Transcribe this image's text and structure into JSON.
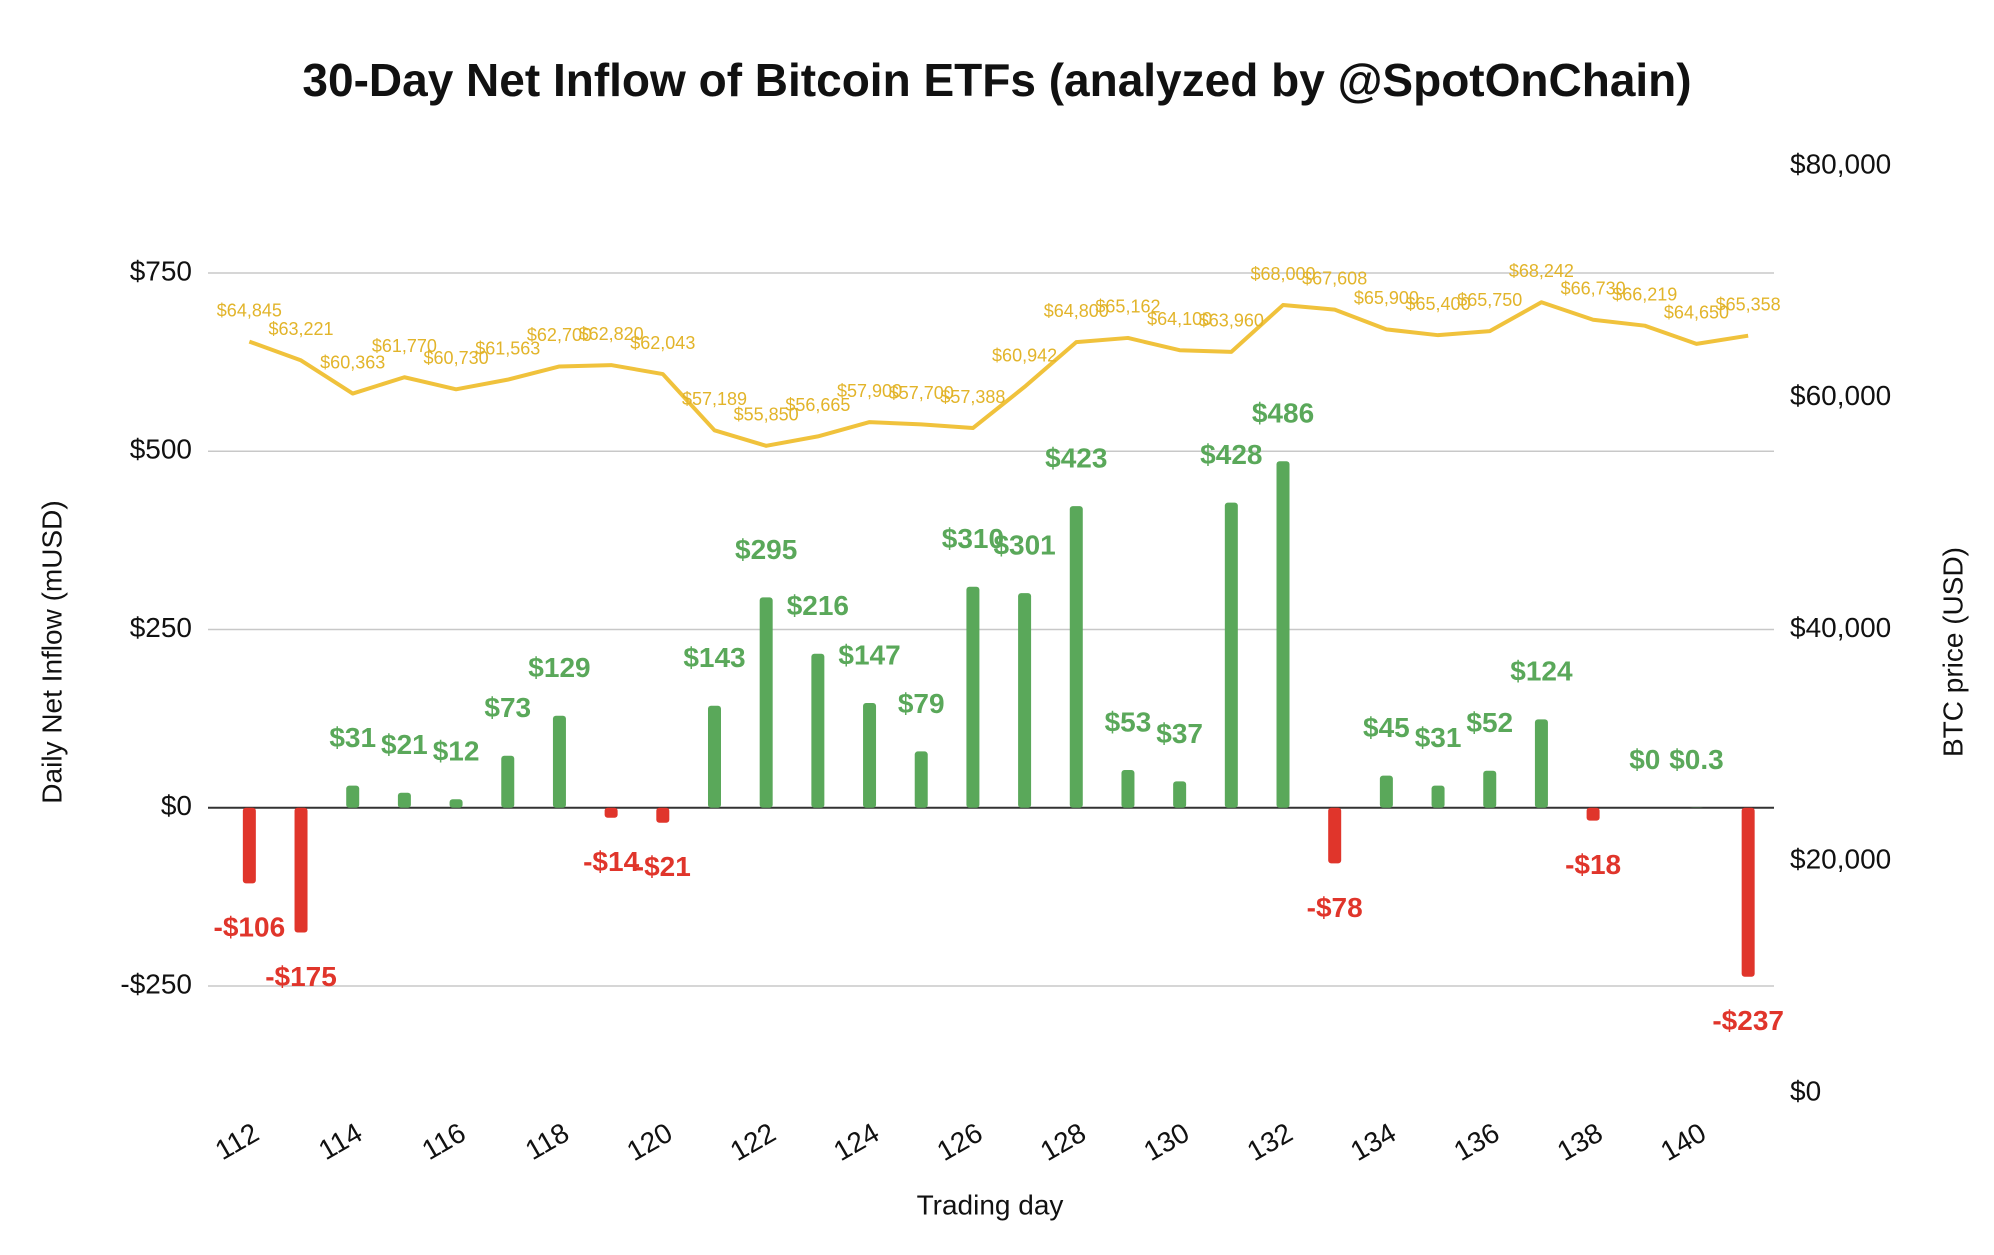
{
  "chart_data": {
    "type": "combo",
    "title": "30-Day Net Inflow of Bitcoin ETFs (analyzed by @SpotOnChain)",
    "x_label": "Trading day",
    "y_label": "Daily Net Inflow (mUSD)",
    "y2_label": "BTC price (USD)",
    "x": [
      112,
      113,
      114,
      115,
      116,
      117,
      118,
      119,
      120,
      121,
      122,
      123,
      124,
      125,
      126,
      127,
      128,
      129,
      130,
      131,
      132,
      133,
      134,
      135,
      136,
      137,
      138,
      139,
      140,
      141
    ],
    "xlim": [
      111.2,
      141.5
    ],
    "xticks": [
      112,
      114,
      116,
      118,
      120,
      122,
      124,
      126,
      128,
      130,
      132,
      134,
      136,
      138,
      140
    ],
    "ylim": [
      -400,
      900
    ],
    "yticks": [
      {
        "value": -250,
        "label": "-$250"
      },
      {
        "value": 0,
        "label": "$0"
      },
      {
        "value": 250,
        "label": "$250"
      },
      {
        "value": 500,
        "label": "$500"
      },
      {
        "value": 750,
        "label": "$750"
      }
    ],
    "y2lim": [
      0,
      80000
    ],
    "y2ticks": [
      {
        "value": 0,
        "label": "$0"
      },
      {
        "value": 20000,
        "label": "$20,000"
      },
      {
        "value": 40000,
        "label": "$40,000"
      },
      {
        "value": 60000,
        "label": "$60,000"
      },
      {
        "value": 80000,
        "label": "$80,000"
      }
    ],
    "grid": true,
    "series": [
      {
        "type": "bar",
        "axis": "y",
        "color": "#5aa85a",
        "negative_color": "#e0352b",
        "values": [
          -106,
          -175,
          31,
          21,
          12,
          73,
          129,
          -14,
          -21,
          143,
          295,
          216,
          147,
          79,
          310,
          301,
          423,
          53,
          37,
          428,
          486,
          -78,
          45,
          31,
          52,
          124,
          -18,
          0,
          0.3,
          -237
        ],
        "value_labels": [
          "-$106",
          "-$175",
          "$31",
          "$21",
          "$12",
          "$73",
          "$129",
          "-$14",
          "-$21",
          "$143",
          "$295",
          "$216",
          "$147",
          "$79",
          "$310",
          "$301",
          "$423",
          "$53",
          "$37",
          "$428",
          "$486",
          "-$78",
          "$45",
          "$31",
          "$52",
          "$124",
          "-$18",
          "$0",
          "$0.3",
          "-$237"
        ]
      },
      {
        "type": "line",
        "axis": "y2",
        "color": "#f0c23c",
        "values": [
          64845,
          63221,
          60363,
          61770,
          60730,
          61563,
          62700,
          62820,
          62043,
          57189,
          55850,
          56665,
          57900,
          57700,
          57388,
          60942,
          64800,
          65162,
          64100,
          63960,
          68000,
          67608,
          65900,
          65400,
          65750,
          68242,
          66730,
          66219,
          64650,
          65358
        ],
        "value_labels": [
          "$64,845",
          "$63,221",
          "$60,363",
          "$61,770",
          "$60,730",
          "$61,563",
          "$62,700",
          "$62,820",
          "$62,043",
          "$57,189",
          "$55,850",
          "$56,665",
          "$57,900",
          "$57,700",
          "$57,388",
          "$60,942",
          "$64,800",
          "$65,162",
          "$64,100",
          "$63,960",
          "$68,000",
          "$67,608",
          "$65,900",
          "$65,400",
          "$65,750",
          "$68,242",
          "$66,730",
          "$66,219",
          "$64,650",
          "$65,358"
        ]
      }
    ]
  }
}
